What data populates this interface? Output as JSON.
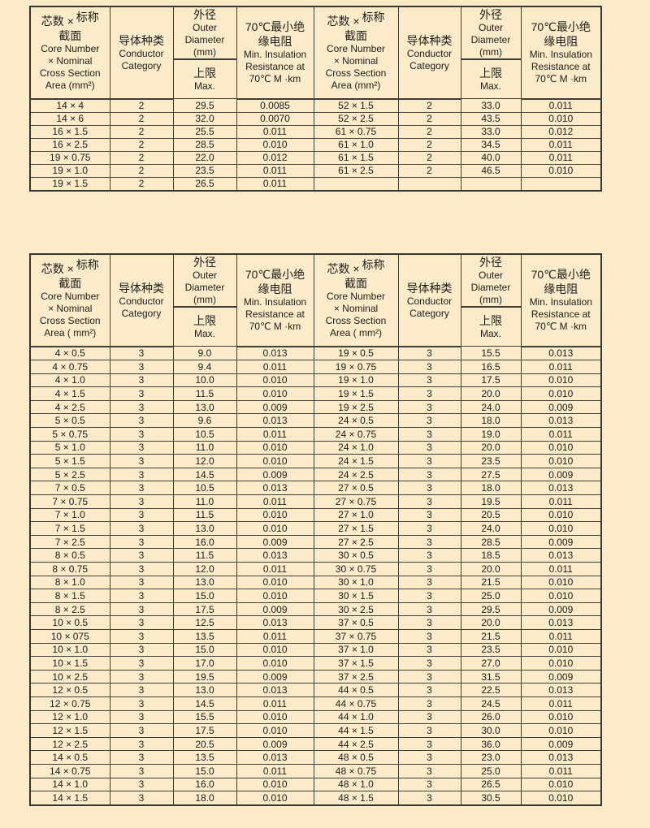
{
  "page": {
    "background_color": "#fcebc8",
    "border_color": "#3d3d3d",
    "text_color": "#1d1d1d"
  },
  "t1": {
    "header": {
      "core_zh_a": "芯数 ×",
      "core_zh_b": "标称",
      "core_zh_c": "截面",
      "core_en1": "Core Number",
      "core_en2": "× Nominal",
      "core_en3": "Cross Section",
      "core_en4": "Area (mm²)",
      "conductor_zh": "导体种类",
      "conductor_en1": "Conductor",
      "conductor_en2": "Category",
      "dia_zh": "外径",
      "dia_en1": "Outer",
      "dia_en2": "Diameter",
      "dia_en3": "(mm)",
      "dia_sub_zh": "上限",
      "dia_sub_en": "Max.",
      "res_zh1": "70℃最小绝",
      "res_zh2": "缘电阻",
      "res_en1": "Min. Insulation",
      "res_en2": "Resistance at",
      "res_en3": "70℃ M ·km"
    },
    "rows": [
      [
        "14 × 4",
        "2",
        "29.5",
        "0.0085",
        "52 × 1.5",
        "2",
        "33.0",
        "0.011"
      ],
      [
        "14 × 6",
        "2",
        "32.0",
        "0.0070",
        "52 × 2.5",
        "2",
        "43.5",
        "0.010"
      ],
      [
        "16 × 1.5",
        "2",
        "25.5",
        "0.011",
        "61 × 0.75",
        "2",
        "33.0",
        "0.012"
      ],
      [
        "16 × 2.5",
        "2",
        "28.5",
        "0.010",
        "61 × 1.0",
        "2",
        "34.5",
        "0.011"
      ],
      [
        "19 × 0.75",
        "2",
        "22.0",
        "0.012",
        "61 × 1.5",
        "2",
        "40.0",
        "0.011"
      ],
      [
        "19 × 1.0",
        "2",
        "23.5",
        "0.011",
        "61 × 2.5",
        "2",
        "46.5",
        "0.010"
      ],
      [
        "19 × 1.5",
        "2",
        "26.5",
        "0.011",
        "",
        "",
        "",
        ""
      ]
    ]
  },
  "t2": {
    "header": {
      "core_zh_a": "芯数 ×",
      "core_zh_b": "标称",
      "core_zh_c": "截面",
      "core_en1": "Core Number",
      "core_en2": "× Nominal",
      "core_en3": "Cross Section",
      "core_en4": "Area ( mm²)",
      "conductor_zh": "导体种类",
      "conductor_en1": "Conductor",
      "conductor_en2": "Category",
      "dia_zh": "外径",
      "dia_en1": "Outer",
      "dia_en2": "Diameter",
      "dia_en3": "(mm)",
      "dia_sub_zh": "上限",
      "dia_sub_en": "Max.",
      "res_zh1": "70℃最小绝",
      "res_zh2": "缘电阻",
      "res_en1": "Min. Insulation",
      "res_en2": "Resistance at",
      "res_en3": "70℃ M ·km"
    },
    "rows": [
      [
        "4 × 0.5",
        "3",
        "9.0",
        "0.013",
        "19 × 0.5",
        "3",
        "15.5",
        "0.013"
      ],
      [
        "4 × 0.75",
        "3",
        "9.4",
        "0.011",
        "19 × 0.75",
        "3",
        "16.5",
        "0.011"
      ],
      [
        "4 × 1.0",
        "3",
        "10.0",
        "0.010",
        "19 × 1.0",
        "3",
        "17.5",
        "0.010"
      ],
      [
        "4 × 1.5",
        "3",
        "11.5",
        "0.010",
        "19 × 1.5",
        "3",
        "20.0",
        "0.010"
      ],
      [
        "4 × 2.5",
        "3",
        "13.0",
        "0.009",
        "19 × 2.5",
        "3",
        "24.0",
        "0.009"
      ],
      [
        "5 × 0.5",
        "3",
        "9.6",
        "0.013",
        "24 × 0.5",
        "3",
        "18.0",
        "0.013"
      ],
      [
        "5 × 0.75",
        "3",
        "10.5",
        "0.011",
        "24 × 0.75",
        "3",
        "19.0",
        "0.011"
      ],
      [
        "5 × 1.0",
        "3",
        "11.0",
        "0.010",
        "24 × 1.0",
        "3",
        "20.0",
        "0.010"
      ],
      [
        "5 × 1.5",
        "3",
        "12.0",
        "0.010",
        "24 × 1.5",
        "3",
        "23.5",
        "0.010"
      ],
      [
        "5 × 2.5",
        "3",
        "14.5",
        "0.009",
        "24 × 2.5",
        "3",
        "27.5",
        "0.009"
      ],
      [
        "7 × 0.5",
        "3",
        "10.5",
        "0.013",
        "27 × 0.5",
        "3",
        "18.0",
        "0.013"
      ],
      [
        "7 × 0.75",
        "3",
        "11.0",
        "0.011",
        "27 × 0.75",
        "3",
        "19.5",
        "0.011"
      ],
      [
        "7 × 1.0",
        "3",
        "11.5",
        "0.010",
        "27 × 1.0",
        "3",
        "20.5",
        "0.010"
      ],
      [
        "7 × 1.5",
        "3",
        "13.0",
        "0.010",
        "27 × 1.5",
        "3",
        "24.0",
        "0.010"
      ],
      [
        "7 × 2.5",
        "3",
        "16.0",
        "0.009",
        "27 × 2.5",
        "3",
        "28.5",
        "0.009"
      ],
      [
        "8 × 0.5",
        "3",
        "11.5",
        "0.013",
        "30 × 0.5",
        "3",
        "18.5",
        "0.013"
      ],
      [
        "8 × 0.75",
        "3",
        "12.0",
        "0.011",
        "30 × 0.75",
        "3",
        "20.0",
        "0.011"
      ],
      [
        "8 × 1.0",
        "3",
        "13.0",
        "0.010",
        "30 × 1.0",
        "3",
        "21.5",
        "0.010"
      ],
      [
        "8 × 1.5",
        "3",
        "15.0",
        "0.010",
        "30 × 1.5",
        "3",
        "25.0",
        "0.010"
      ],
      [
        "8 × 2.5",
        "3",
        "17.5",
        "0.009",
        "30 × 2.5",
        "3",
        "29.5",
        "0.009"
      ],
      [
        "10 × 0.5",
        "3",
        "12.5",
        "0.013",
        "37 × 0.5",
        "3",
        "20.0",
        "0.013"
      ],
      [
        "10 × 075",
        "3",
        "13.5",
        "0.011",
        "37 × 0.75",
        "3",
        "21.5",
        "0.011"
      ],
      [
        "10 × 1.0",
        "3",
        "15.0",
        "0.010",
        "37 × 1.0",
        "3",
        "23.5",
        "0.010"
      ],
      [
        "10 × 1.5",
        "3",
        "17.0",
        "0.010",
        "37 × 1.5",
        "3",
        "27.0",
        "0.010"
      ],
      [
        "10 × 2.5",
        "3",
        "19.5",
        "0.009",
        "37 × 2.5",
        "3",
        "31.5",
        "0.009"
      ],
      [
        "12 × 0.5",
        "3",
        "13.0",
        "0.013",
        "44 × 0.5",
        "3",
        "22.5",
        "0.013"
      ],
      [
        "12 × 0.75",
        "3",
        "14.5",
        "0.011",
        "44 × 0.75",
        "3",
        "24.5",
        "0.011"
      ],
      [
        "12 × 1.0",
        "3",
        "15.5",
        "0.010",
        "44 × 1.0",
        "3",
        "26.0",
        "0.010"
      ],
      [
        "12 × 1.5",
        "3",
        "17.5",
        "0.010",
        "44 × 1.5",
        "3",
        "30.0",
        "0.010"
      ],
      [
        "12 × 2.5",
        "3",
        "20.5",
        "0.009",
        "44 × 2.5",
        "3",
        "36.0",
        "0.009"
      ],
      [
        "14 × 0.5",
        "3",
        "13.5",
        "0.013",
        "48 × 0.5",
        "3",
        "23.0",
        "0.013"
      ],
      [
        "14 × 0.75",
        "3",
        "15.0",
        "0.011",
        "48 × 0.75",
        "3",
        "25.0",
        "0.011"
      ],
      [
        "14 × 1.0",
        "3",
        "16.0",
        "0.010",
        "48 × 1.0",
        "3",
        "26.5",
        "0.010"
      ],
      [
        "14 × 1.5",
        "3",
        "18.0",
        "0.010",
        "48 × 1.5",
        "3",
        "30.5",
        "0.010"
      ]
    ]
  }
}
